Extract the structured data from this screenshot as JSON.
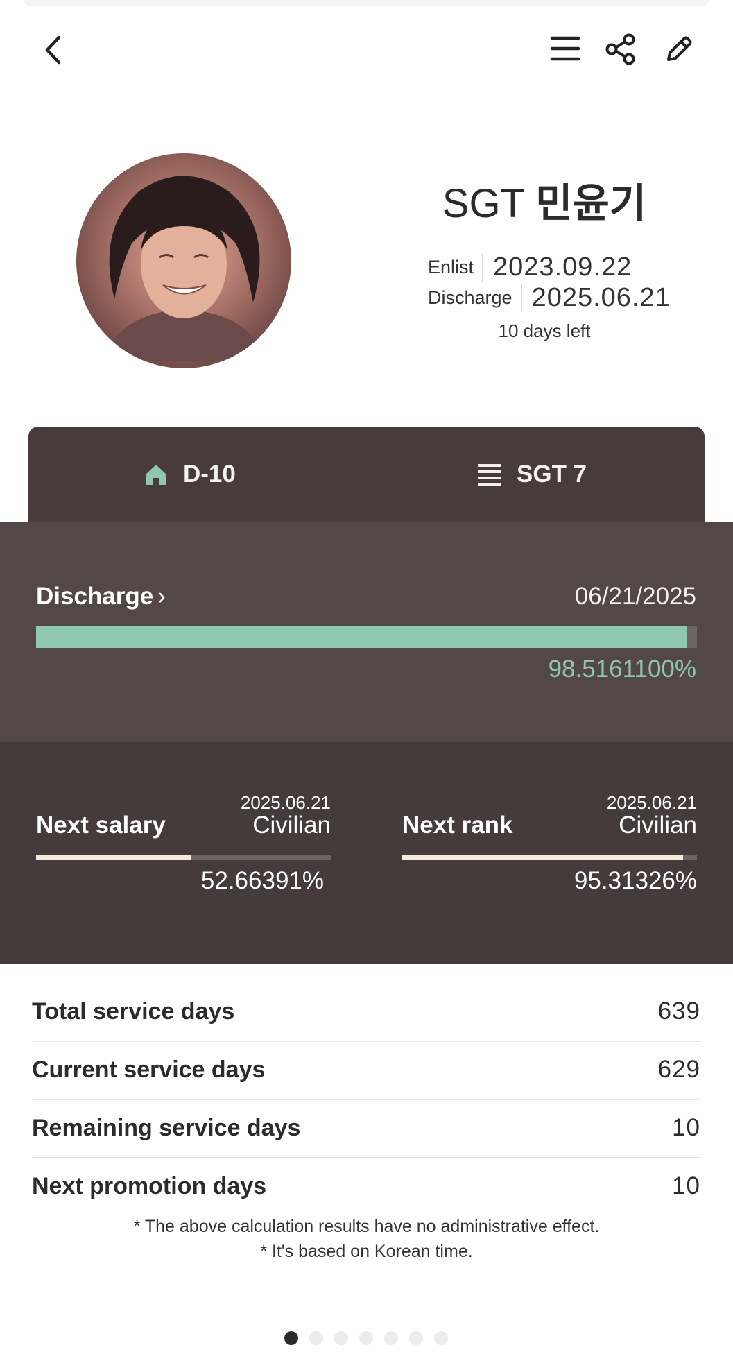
{
  "header": {
    "back_icon": "chevron-left-icon",
    "menu_icon": "menu-icon",
    "share_icon": "share-icon",
    "edit_icon": "pencil-icon"
  },
  "profile": {
    "rank": "SGT",
    "name": "민윤기",
    "enlist_label": "Enlist",
    "enlist_date": "2023.09.22",
    "discharge_label": "Discharge",
    "discharge_date": "2025.06.21",
    "days_left": "10 days left"
  },
  "tabs": [
    {
      "label": "D-10",
      "icon": "home-icon"
    },
    {
      "label": "SGT 7",
      "icon": "list-icon"
    }
  ],
  "discharge": {
    "title": "Discharge",
    "date": "06/21/2025",
    "percent": "98.5161100%",
    "progress": 0.985161
  },
  "next_salary": {
    "title": "Next salary",
    "date": "2025.06.21",
    "target": "Civilian",
    "percent": "52.66391%",
    "progress": 0.5266391
  },
  "next_rank": {
    "title": "Next rank",
    "date": "2025.06.21",
    "target": "Civilian",
    "percent": "95.31326%",
    "progress": 0.9531326
  },
  "stats": [
    {
      "label": "Total service days",
      "value": "639"
    },
    {
      "label": "Current service days",
      "value": "629"
    },
    {
      "label": "Remaining service days",
      "value": "10"
    },
    {
      "label": "Next promotion days",
      "value": "10"
    }
  ],
  "notes": [
    "* The above calculation results have no administrative effect.",
    "* It's based on Korean time."
  ],
  "pager": {
    "count": 7,
    "active_index": 0
  },
  "colors": {
    "accent_green": "#8fc8ae",
    "cream": "#f6eadb",
    "tab_bg": "#473b3c",
    "discharge_bg": "#534748",
    "next_bg": "#463b3c"
  }
}
